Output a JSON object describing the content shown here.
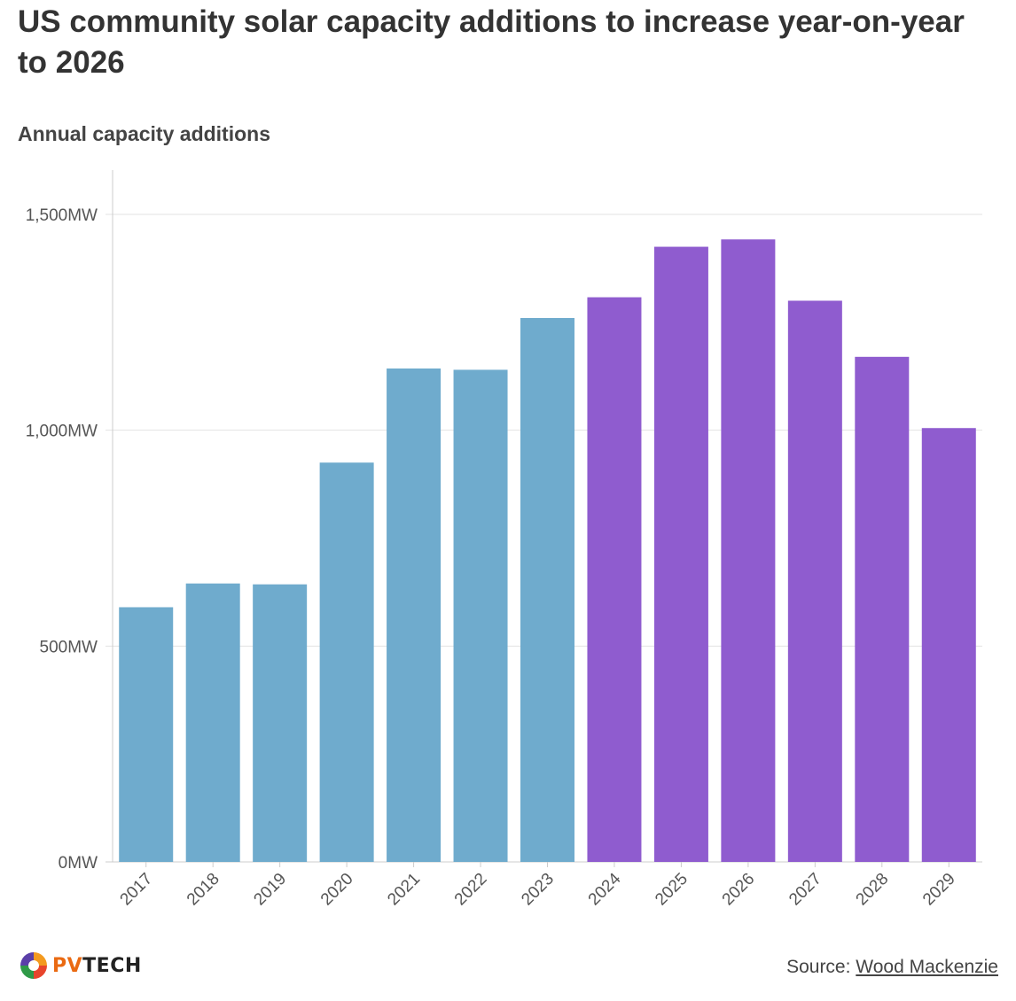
{
  "title": "US community solar capacity additions to increase year-on-year to 2026",
  "subtitle": "Annual capacity additions",
  "source": {
    "label": "Source:",
    "link_text": "Wood Mackenzie"
  },
  "logo": {
    "prefix": "PV",
    "suffix": "TECH",
    "icon": "pv-tech-logo-icon"
  },
  "colors": {
    "historical": "#6fabcd",
    "forecast": "#8f5ccf",
    "grid": "#e3e3e3",
    "axis": "#cccccc"
  },
  "chart_data": {
    "type": "bar",
    "title": "US community solar capacity additions to increase year-on-year to 2026",
    "subtitle": "Annual capacity additions",
    "xlabel": "",
    "ylabel": "",
    "ylim": [
      0,
      1600
    ],
    "yticks": [
      0,
      500,
      1000,
      1500
    ],
    "ytick_labels": [
      "0MW",
      "500MW",
      "1,000MW",
      "1,500MW"
    ],
    "categories": [
      "2017",
      "2018",
      "2019",
      "2020",
      "2021",
      "2022",
      "2023",
      "2024",
      "2025",
      "2026",
      "2027",
      "2028",
      "2029"
    ],
    "values": [
      590,
      645,
      643,
      925,
      1143,
      1140,
      1260,
      1308,
      1425,
      1442,
      1300,
      1170,
      1005
    ],
    "series_kind": [
      "historical",
      "historical",
      "historical",
      "historical",
      "historical",
      "historical",
      "historical",
      "forecast",
      "forecast",
      "forecast",
      "forecast",
      "forecast",
      "forecast"
    ],
    "grid": true
  }
}
